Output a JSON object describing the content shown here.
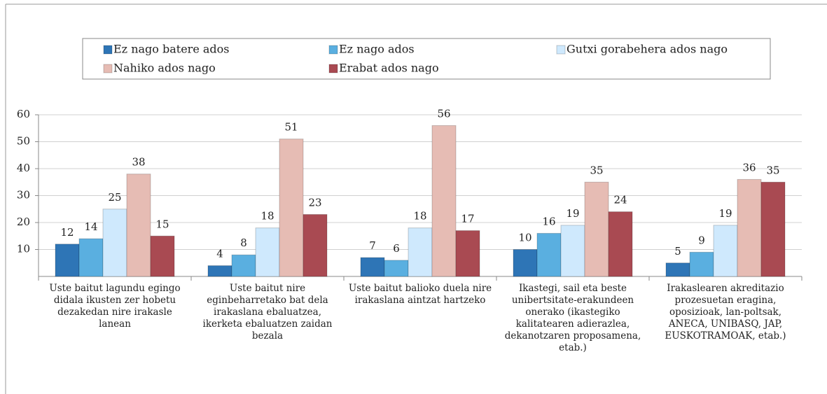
{
  "chart_data": {
    "type": "bar",
    "categories": [
      "Uste baitut lagundu egingo didala ikusten zer hobetu dezakedan nire irakasle lanean",
      "Uste baitut nire eginbeharretako bat dela irakaslana ebaluatzea, ikerketa ebaluatzen zaidan bezala",
      "Uste baitut balioko duela nire irakaslana aintzat hartzeko",
      "Ikastegi, sail eta beste unibertsitate-erakundeen onerako (ikastegiko kalitatearen adierazlea, dekanotzaren proposamena, etab.)",
      "Irakaslearen akreditazio prozesuetan eragina, oposizioak, lan-poltsak, ANECA, UNIBASQ, JAP, EUSKOTRAMOAK, etab.)"
    ],
    "series": [
      {
        "name": "Ez nago batere ados",
        "color": "#2e75b6",
        "values": [
          12,
          4,
          7,
          10,
          5
        ]
      },
      {
        "name": "Ez nago ados",
        "color": "#5aafe0",
        "values": [
          14,
          8,
          6,
          16,
          9
        ]
      },
      {
        "name": "Gutxi gorabehera ados nago",
        "color": "#cfe9fd",
        "values": [
          25,
          18,
          18,
          19,
          19
        ]
      },
      {
        "name": "Nahiko ados nago",
        "color": "#e6bcb4",
        "values": [
          38,
          51,
          56,
          35,
          36
        ]
      },
      {
        "name": "Erabat ados nago",
        "color": "#a94a52",
        "values": [
          15,
          23,
          17,
          24,
          35
        ]
      }
    ],
    "ylim": [
      0,
      60
    ],
    "yticks": [
      10,
      20,
      30,
      40,
      50,
      60
    ],
    "grid": true
  }
}
